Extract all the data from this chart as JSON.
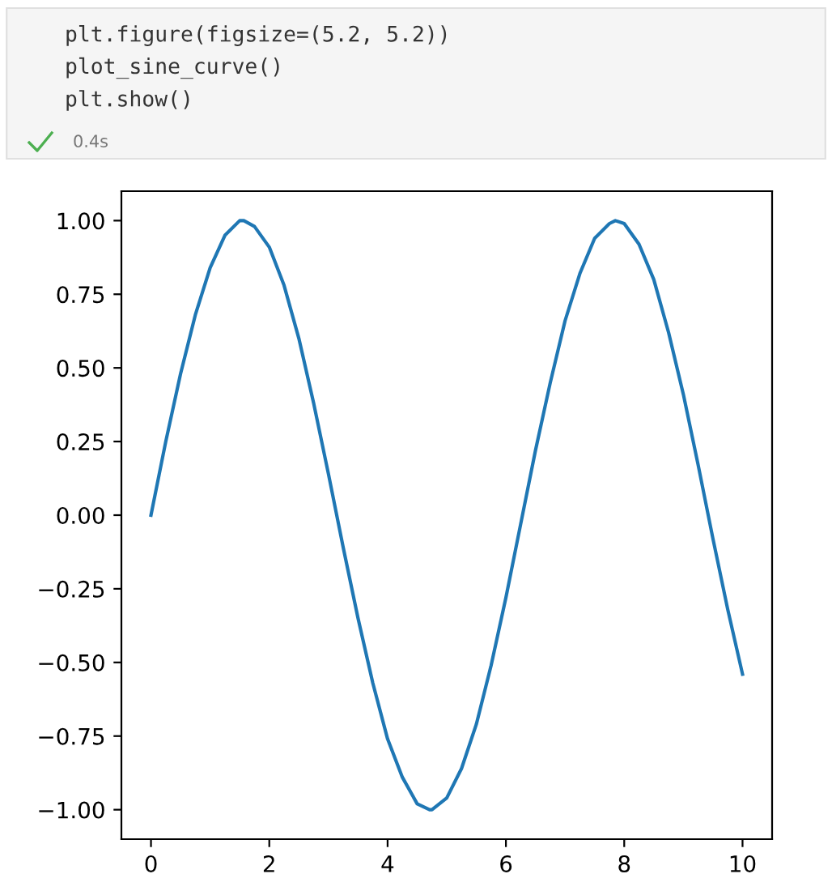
{
  "chart_data": {
    "type": "line",
    "annotations": [
      "plt.figure(figsize=(5.2, 5.2))",
      "plot_sine_curve()",
      "plt.show()",
      "0.4s"
    ],
    "x": [
      0,
      0.25,
      0.5,
      0.75,
      1,
      1.25,
      1.5,
      1.57,
      1.75,
      2,
      2.25,
      2.5,
      2.75,
      3,
      3.25,
      3.5,
      3.75,
      4,
      4.25,
      4.5,
      4.71,
      4.75,
      5,
      5.25,
      5.5,
      5.75,
      6,
      6.25,
      6.5,
      6.75,
      7,
      7.25,
      7.5,
      7.75,
      7.85,
      8,
      8.25,
      8.5,
      8.75,
      9,
      9.25,
      9.5,
      9.75,
      10
    ],
    "series": [
      {
        "color": "#1f77b4",
        "values": [
          0,
          0.25,
          0.48,
          0.68,
          0.84,
          0.95,
          1.0,
          1.0,
          0.98,
          0.91,
          0.78,
          0.6,
          0.38,
          0.14,
          -0.11,
          -0.35,
          -0.57,
          -0.76,
          -0.89,
          -0.98,
          -1.0,
          -1.0,
          -0.96,
          -0.86,
          -0.71,
          -0.51,
          -0.28,
          -0.03,
          0.22,
          0.45,
          0.66,
          0.82,
          0.94,
          0.99,
          1.0,
          0.99,
          0.92,
          0.8,
          0.62,
          0.41,
          0.17,
          -0.08,
          -0.32,
          -0.54
        ]
      }
    ],
    "xlim": [
      -0.5,
      10.5
    ],
    "ylim": [
      -1.1,
      1.1
    ],
    "xticks": [
      0,
      2,
      4,
      6,
      8,
      10
    ],
    "yticks": [
      {
        "value": -1,
        "label": "−1.00"
      },
      {
        "value": -0.75,
        "label": "−0.75"
      },
      {
        "value": -0.5,
        "label": "−0.50"
      },
      {
        "value": -0.25,
        "label": "−0.25"
      },
      {
        "value": 0,
        "label": "0.00"
      },
      {
        "value": 0.25,
        "label": "0.25"
      },
      {
        "value": 0.5,
        "label": "0.50"
      },
      {
        "value": 0.75,
        "label": "0.75"
      },
      {
        "value": 1,
        "label": "1.00"
      }
    ],
    "grid": false,
    "legend": false,
    "marker": "none",
    "line_style": "solid"
  }
}
